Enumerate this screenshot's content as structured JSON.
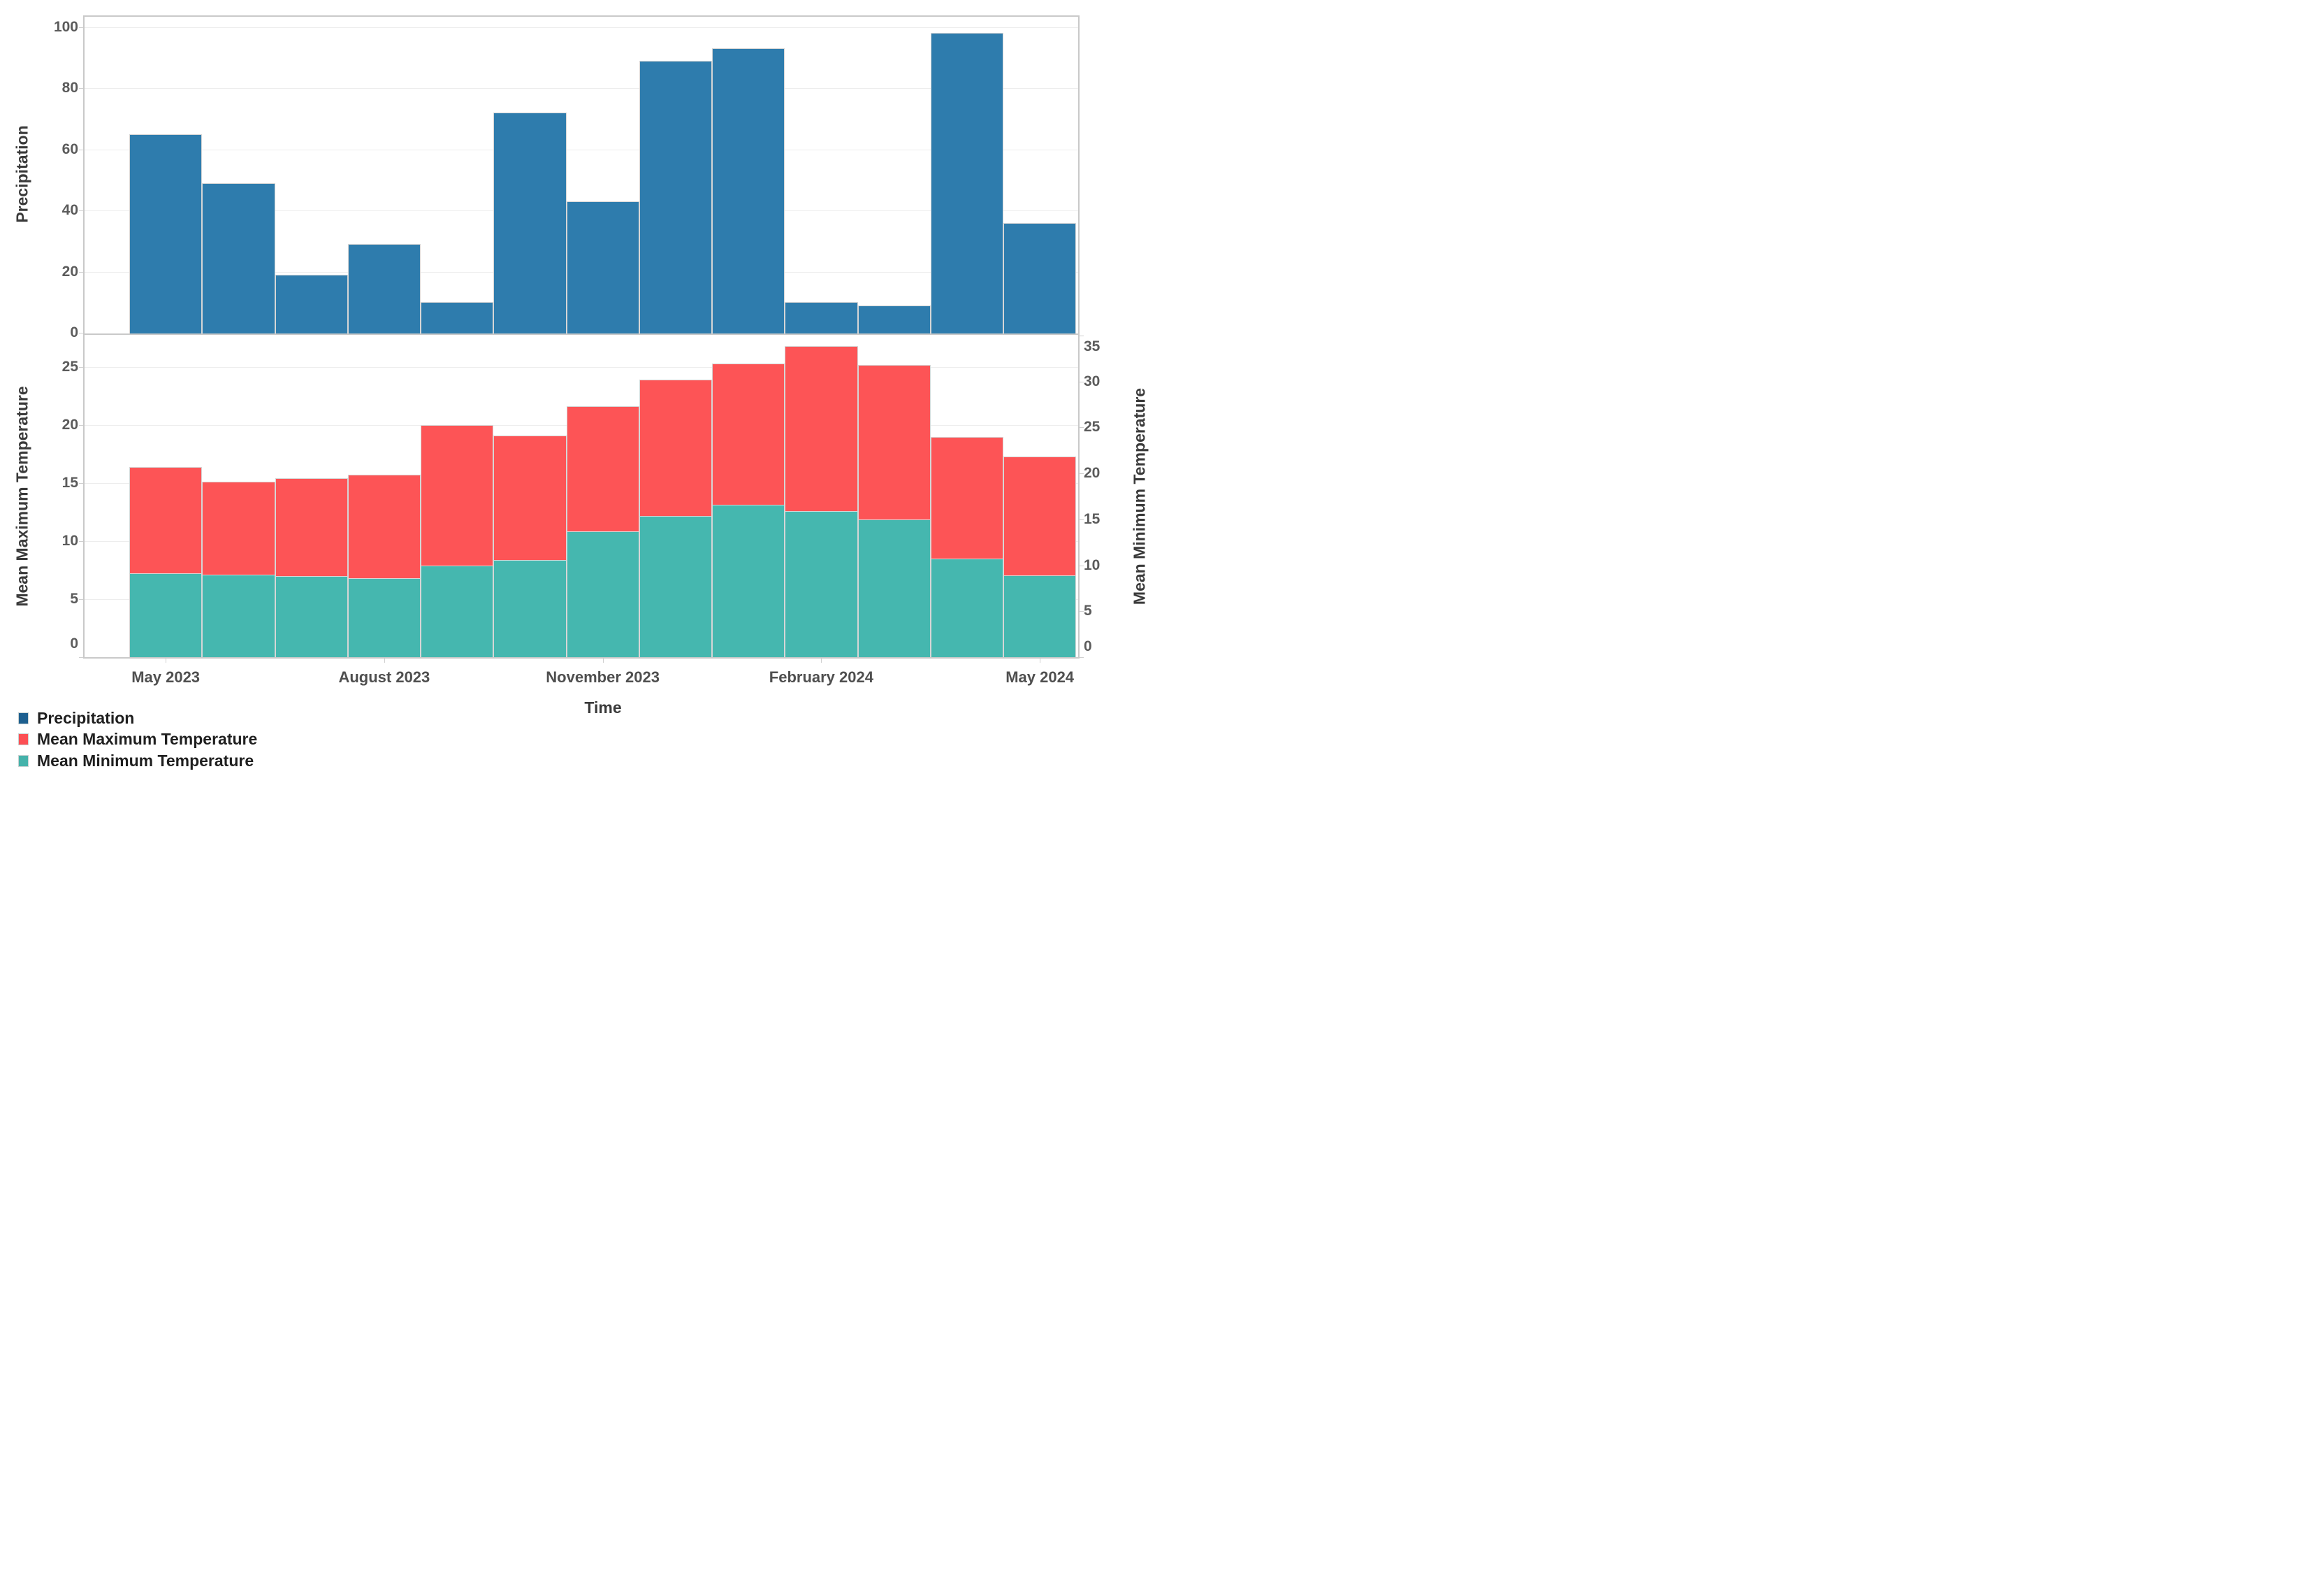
{
  "chart_data": [
    {
      "type": "bar",
      "panel": "top",
      "ylabel": "Precipitation",
      "categories": [
        "May 2023",
        "June 2023",
        "July 2023",
        "August 2023",
        "September 2023",
        "October 2023",
        "November 2023",
        "December 2023",
        "January 2024",
        "February 2024",
        "March 2024",
        "April 2024",
        "May 2024"
      ],
      "values": [
        65,
        49,
        19,
        29,
        10,
        72,
        43,
        89,
        93,
        10,
        9,
        98,
        36
      ],
      "ylim": [
        0,
        104
      ],
      "yticks": [
        0,
        20,
        40,
        60,
        80,
        100
      ],
      "grid": true,
      "bar_color": "#2e7cad"
    },
    {
      "type": "bar",
      "panel": "bottom",
      "categories": [
        "May 2023",
        "June 2023",
        "July 2023",
        "August 2023",
        "September 2023",
        "October 2023",
        "November 2023",
        "December 2023",
        "January 2024",
        "February 2024",
        "March 2024",
        "April 2024",
        "May 2024"
      ],
      "series": [
        {
          "name": "Mean Maximum Temperature",
          "axis": "left",
          "color": "#fd5456",
          "values": [
            16.4,
            15.1,
            15.4,
            15.7,
            20.0,
            19.1,
            21.6,
            23.9,
            25.3,
            26.8,
            25.2,
            19.0,
            17.3
          ]
        },
        {
          "name": "Mean Minimum Temperature",
          "axis": "right",
          "color": "#45b7af",
          "values": [
            9.1,
            9.0,
            8.8,
            8.6,
            10.0,
            10.6,
            13.7,
            15.4,
            16.6,
            15.9,
            15.0,
            10.7,
            8.9
          ]
        }
      ],
      "xlabel": "Time",
      "xtick_labels": [
        "May 2023",
        "August 2023",
        "November 2023",
        "February 2024",
        "May 2024"
      ],
      "xtick_month_indices": [
        0,
        3,
        6,
        9,
        12
      ],
      "ylabel_left": "Mean Maximum Temperature",
      "ylabel_right": "Mean Minimum Temperature",
      "ylim_left": [
        0,
        27.9
      ],
      "ylim_right": [
        0,
        35
      ],
      "yticks_left": [
        0,
        5,
        10,
        15,
        20,
        25
      ],
      "yticks_right": [
        0,
        5,
        10,
        15,
        20,
        25,
        30,
        35
      ],
      "grid": "left-axis-only",
      "overlay": "min-drawn-over-max"
    }
  ],
  "legend": {
    "position": "bottom-left",
    "items": [
      {
        "label": "Precipitation",
        "swatch_color": "#1d5f8f"
      },
      {
        "label": "Mean Maximum Temperature",
        "swatch_color": "#fc4f54"
      },
      {
        "label": "Mean Minimum Temperature",
        "swatch_color": "#45b2aa"
      }
    ]
  },
  "colors": {
    "precipitation_bar": "#2e7cad",
    "max_temp_bar": "#fd5456",
    "min_temp_bar": "#45b7af",
    "gridline": "#ededed",
    "spine": "#c9c9c9",
    "tick_label": "#5b5b5b",
    "axis_title": "#3a3a3a",
    "legend_text": "#1f1f1f",
    "background": "#ffffff"
  }
}
